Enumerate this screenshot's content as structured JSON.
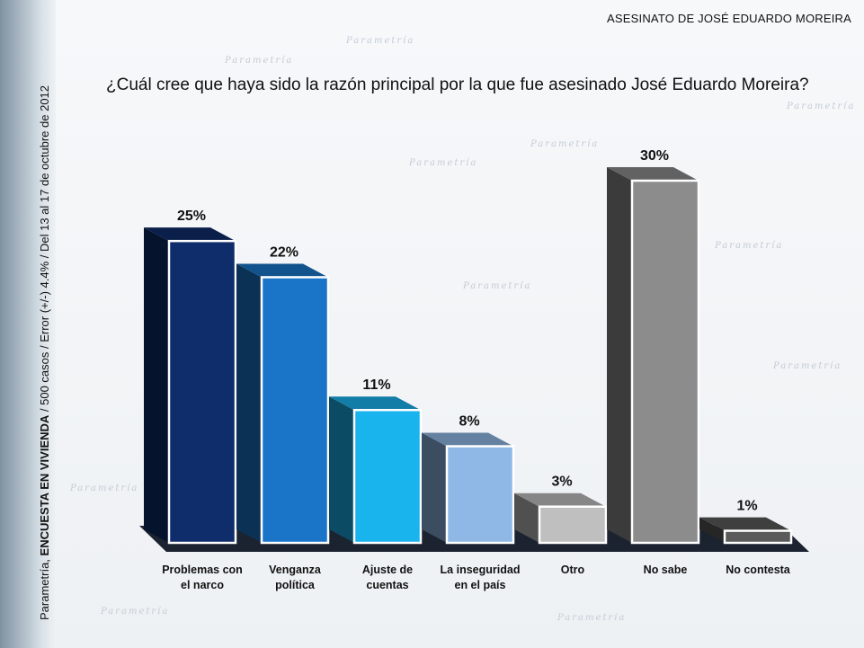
{
  "header": {
    "title": "ASESINATO DE JOSÉ EDUARDO MOREIRA"
  },
  "question": "¿Cuál cree que haya sido la razón principal por la que fue asesinado José Eduardo Moreira?",
  "side_note": {
    "prefix": "Parametría, ",
    "bold": "ENCUESTA EN VIVIENDA",
    "rest": " / 500 casos / Error (+/-) 4.4% / Del 13 al 17 de octubre de 2012"
  },
  "watermark": {
    "text": "Parametría"
  },
  "colors": {
    "problemas_narco": "#0f2d6b",
    "venganza": "#1a75c9",
    "ajuste": "#19b3ee",
    "inseguridad": "#8fb8e6",
    "otro": "#bfbfbf",
    "no_sabe": "#8c8c8c",
    "no_contesta": "#5a5a5a",
    "floor": "#1b2230"
  },
  "chart_data": {
    "type": "bar",
    "categories": [
      [
        "Problemas con",
        "el narco"
      ],
      [
        "Venganza",
        "política"
      ],
      [
        "Ajuste de",
        "cuentas"
      ],
      [
        "La inseguridad",
        "en el país"
      ],
      [
        "Otro"
      ],
      [
        "No sabe"
      ],
      [
        "No contesta"
      ]
    ],
    "values": [
      25,
      22,
      11,
      8,
      3,
      30,
      1
    ],
    "value_labels": [
      "25%",
      "22%",
      "11%",
      "8%",
      "3%",
      "30%",
      "1%"
    ],
    "unit": "%",
    "ylim": [
      0,
      30
    ],
    "grid": false,
    "legend": "none"
  }
}
